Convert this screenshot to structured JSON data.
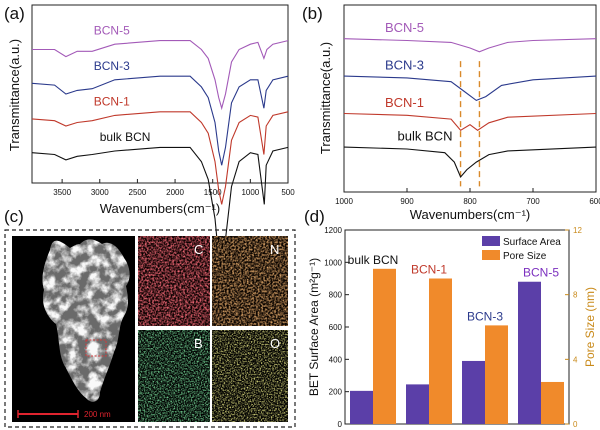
{
  "panels": {
    "a": {
      "letter": "(a)"
    },
    "b": {
      "letter": "(b)"
    },
    "c": {
      "letter": "(c)"
    },
    "d": {
      "letter": "(d)"
    }
  },
  "chart_data": [
    {
      "panel": "(a)",
      "type": "line",
      "xlabel": "Wavenumbers(cm⁻¹)",
      "ylabel": "Transmittance(a.u.)",
      "xlim": [
        3900,
        500
      ],
      "xticks": [
        3500,
        3000,
        2500,
        2000,
        1500,
        1000,
        500
      ],
      "y_ticks_shown": false,
      "series": [
        {
          "name": "BCN-5",
          "color": "#a35ab8",
          "offset": 0.8,
          "label_at": 3080,
          "points": [
            [
              3900,
              0.05
            ],
            [
              3600,
              0.05
            ],
            [
              3450,
              0.09
            ],
            [
              3300,
              0.06
            ],
            [
              3100,
              0.06
            ],
            [
              2800,
              0.02
            ],
            [
              2200,
              0.0
            ],
            [
              1800,
              0.0
            ],
            [
              1650,
              0.05
            ],
            [
              1560,
              0.1
            ],
            [
              1470,
              0.22
            ],
            [
              1420,
              0.32
            ],
            [
              1380,
              0.38
            ],
            [
              1330,
              0.3
            ],
            [
              1250,
              0.12
            ],
            [
              1150,
              0.05
            ],
            [
              1000,
              0.02
            ],
            [
              900,
              0.01
            ],
            [
              820,
              0.1
            ],
            [
              780,
              0.05
            ],
            [
              700,
              0.02
            ],
            [
              500,
              0.0
            ]
          ]
        },
        {
          "name": "BCN-3",
          "color": "#2b3a8c",
          "offset": 0.6,
          "label_at": 3080,
          "points": [
            [
              3900,
              0.04
            ],
            [
              3600,
              0.05
            ],
            [
              3450,
              0.1
            ],
            [
              3300,
              0.08
            ],
            [
              3100,
              0.07
            ],
            [
              2800,
              0.02
            ],
            [
              2200,
              0.0
            ],
            [
              1800,
              0.0
            ],
            [
              1650,
              0.06
            ],
            [
              1560,
              0.12
            ],
            [
              1470,
              0.26
            ],
            [
              1420,
              0.42
            ],
            [
              1380,
              0.5
            ],
            [
              1330,
              0.4
            ],
            [
              1250,
              0.15
            ],
            [
              1150,
              0.06
            ],
            [
              1000,
              0.02
            ],
            [
              900,
              0.02
            ],
            [
              820,
              0.18
            ],
            [
              790,
              0.08
            ],
            [
              700,
              0.02
            ],
            [
              500,
              0.0
            ]
          ]
        },
        {
          "name": "BCN-1",
          "color": "#c0392b",
          "offset": 0.4,
          "label_at": 3080,
          "points": [
            [
              3900,
              0.04
            ],
            [
              3600,
              0.05
            ],
            [
              3450,
              0.08
            ],
            [
              3300,
              0.06
            ],
            [
              3100,
              0.05
            ],
            [
              2800,
              0.02
            ],
            [
              2200,
              0.0
            ],
            [
              1800,
              0.0
            ],
            [
              1650,
              0.06
            ],
            [
              1560,
              0.12
            ],
            [
              1470,
              0.28
            ],
            [
              1420,
              0.44
            ],
            [
              1380,
              0.52
            ],
            [
              1330,
              0.42
            ],
            [
              1250,
              0.16
            ],
            [
              1150,
              0.06
            ],
            [
              1000,
              0.02
            ],
            [
              900,
              0.03
            ],
            [
              820,
              0.24
            ],
            [
              790,
              0.08
            ],
            [
              700,
              0.02
            ],
            [
              500,
              0.0
            ]
          ]
        },
        {
          "name": "bulk BCN",
          "color": "#111111",
          "offset": 0.2,
          "label_at": 3000,
          "points": [
            [
              3900,
              0.03
            ],
            [
              3600,
              0.04
            ],
            [
              3450,
              0.07
            ],
            [
              3300,
              0.05
            ],
            [
              3100,
              0.04
            ],
            [
              2800,
              0.02
            ],
            [
              2200,
              0.0
            ],
            [
              1800,
              0.0
            ],
            [
              1650,
              0.08
            ],
            [
              1560,
              0.18
            ],
            [
              1470,
              0.4
            ],
            [
              1420,
              0.62
            ],
            [
              1390,
              0.72
            ],
            [
              1340,
              0.55
            ],
            [
              1250,
              0.22
            ],
            [
              1150,
              0.08
            ],
            [
              1000,
              0.03
            ],
            [
              900,
              0.04
            ],
            [
              815,
              0.32
            ],
            [
              790,
              0.1
            ],
            [
              700,
              0.02
            ],
            [
              500,
              0.0
            ]
          ]
        }
      ]
    },
    {
      "panel": "(b)",
      "type": "line",
      "xlabel": "Wavenumbers(cm⁻¹)",
      "ylabel": "Transmittance(a.u.)",
      "xlim": [
        1000,
        600
      ],
      "xticks": [
        1000,
        900,
        800,
        700,
        600
      ],
      "y_ticks_shown": false,
      "reference_lines_x": [
        815,
        785
      ],
      "series": [
        {
          "name": "BCN-5",
          "color": "#a35ab8",
          "offset": 0.82,
          "label_at": 935,
          "points": [
            [
              1000,
              0.0
            ],
            [
              900,
              0.01
            ],
            [
              830,
              0.02
            ],
            [
              800,
              0.05
            ],
            [
              785,
              0.07
            ],
            [
              770,
              0.05
            ],
            [
              740,
              0.02
            ],
            [
              700,
              0.01
            ],
            [
              600,
              0.0
            ]
          ]
        },
        {
          "name": "BCN-3",
          "color": "#2b3a8c",
          "offset": 0.62,
          "label_at": 935,
          "points": [
            [
              1000,
              0.0
            ],
            [
              900,
              0.01
            ],
            [
              830,
              0.03
            ],
            [
              810,
              0.08
            ],
            [
              790,
              0.13
            ],
            [
              775,
              0.11
            ],
            [
              750,
              0.05
            ],
            [
              700,
              0.02
            ],
            [
              600,
              0.0
            ]
          ]
        },
        {
          "name": "BCN-1",
          "color": "#c0392b",
          "offset": 0.42,
          "label_at": 935,
          "points": [
            [
              1000,
              0.0
            ],
            [
              900,
              0.01
            ],
            [
              830,
              0.03
            ],
            [
              815,
              0.09
            ],
            [
              800,
              0.06
            ],
            [
              788,
              0.09
            ],
            [
              770,
              0.05
            ],
            [
              740,
              0.02
            ],
            [
              600,
              0.0
            ]
          ]
        },
        {
          "name": "bulk BCN",
          "color": "#111111",
          "offset": 0.24,
          "label_at": 915,
          "points": [
            [
              1000,
              0.0
            ],
            [
              900,
              0.01
            ],
            [
              840,
              0.03
            ],
            [
              825,
              0.08
            ],
            [
              815,
              0.16
            ],
            [
              805,
              0.12
            ],
            [
              790,
              0.08
            ],
            [
              770,
              0.04
            ],
            [
              740,
              0.02
            ],
            [
              600,
              0.0
            ]
          ]
        }
      ]
    },
    {
      "panel": "(d)",
      "type": "bar",
      "categories": [
        "bulk BCN",
        "BCN-1",
        "BCN-3",
        "BCN-5"
      ],
      "category_label_colors": [
        "#111111",
        "#c0392b",
        "#2b3a8c",
        "#7b2fbf"
      ],
      "ylabel": "BET Surface Area (m²g⁻¹)",
      "y2label": "Pore Size (nm)",
      "ylim": [
        0,
        1200
      ],
      "yticks": [
        0,
        200,
        400,
        600,
        800,
        1000,
        1200
      ],
      "y2lim": [
        0,
        12
      ],
      "y2ticks": [
        0,
        4,
        8,
        12
      ],
      "legend_position": "top-right",
      "series": [
        {
          "name": "Surface Area",
          "color": "#5b3fa8",
          "axis": "left",
          "values": [
            205,
            245,
            390,
            880
          ]
        },
        {
          "name": "Pore Size",
          "color": "#f08a2b",
          "axis": "right",
          "values": [
            9.6,
            9.0,
            6.1,
            2.6
          ]
        }
      ]
    }
  ],
  "panel_c": {
    "scale_bar_label": "200 nm",
    "maps": [
      {
        "element": "C",
        "color": "#e0242f"
      },
      {
        "element": "N",
        "color": "#d9702a"
      },
      {
        "element": "B",
        "color": "#2fae4f"
      },
      {
        "element": "O",
        "color": "#c9c83a"
      }
    ]
  }
}
